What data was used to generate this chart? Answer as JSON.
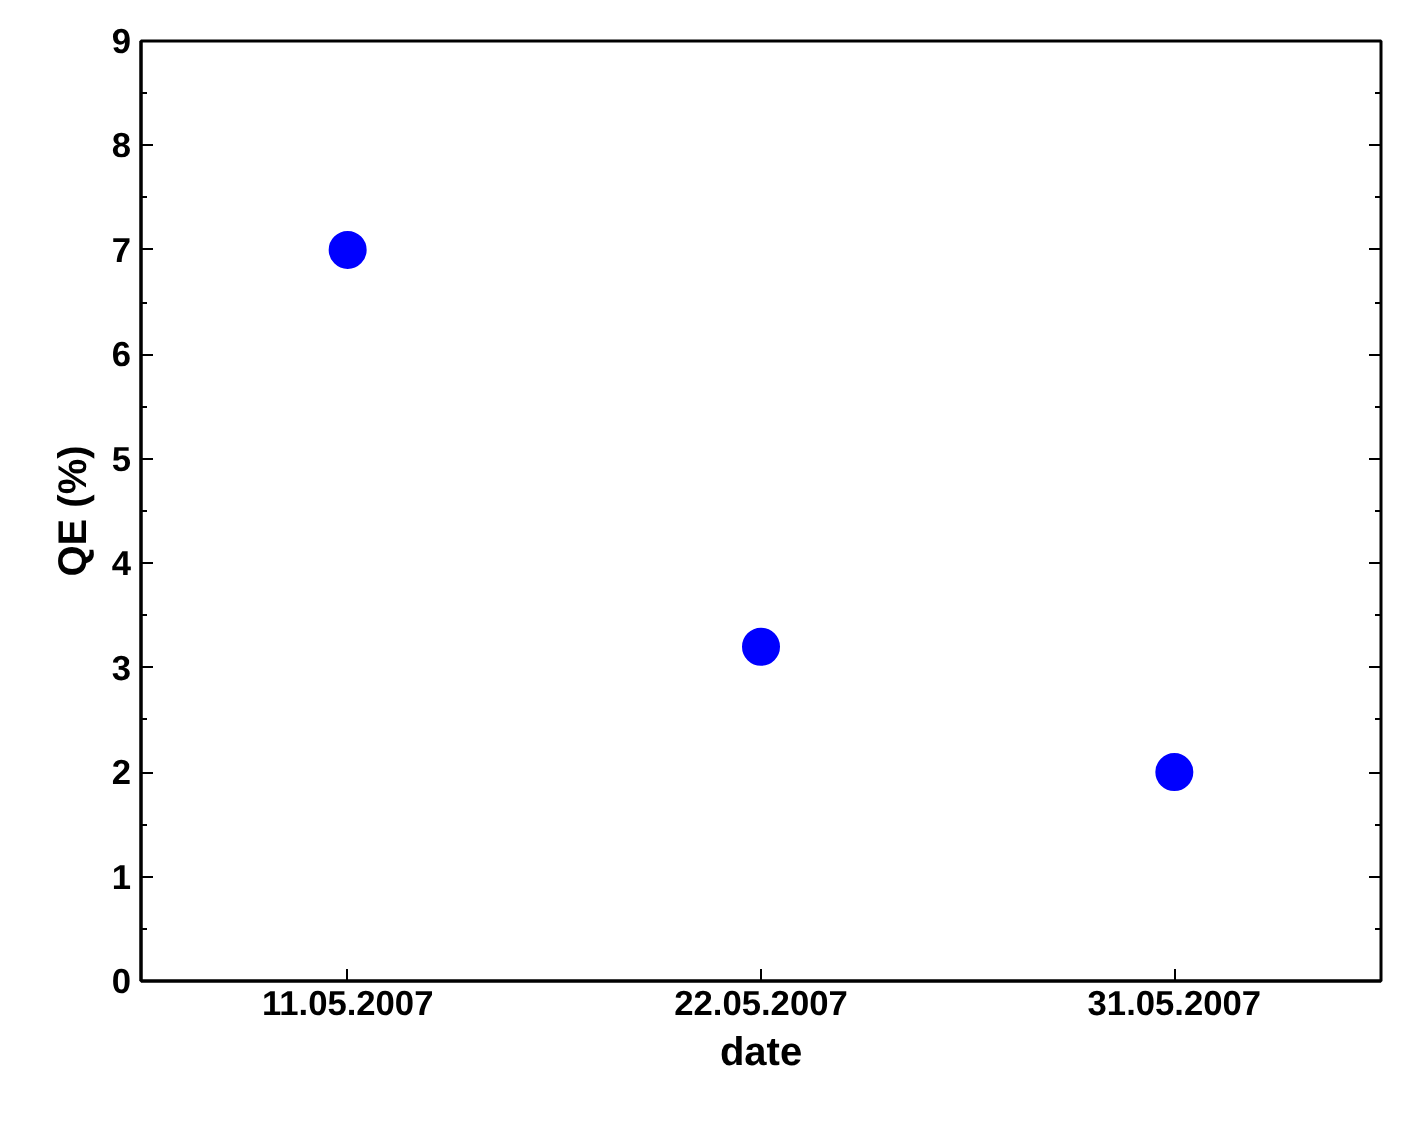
{
  "chart_data": {
    "type": "scatter",
    "xlabel": "date",
    "ylabel": "QE (%)",
    "categories": [
      "11.05.2007",
      "22.05.2007",
      "31.05.2007"
    ],
    "series": [
      {
        "color": "#0000ff",
        "values": [
          7,
          3.2,
          2
        ]
      }
    ],
    "ylim": [
      0,
      9
    ],
    "yticks": [
      0,
      1,
      2,
      3,
      4,
      5,
      6,
      7,
      8,
      9
    ],
    "grid": false,
    "marker": "circle"
  }
}
